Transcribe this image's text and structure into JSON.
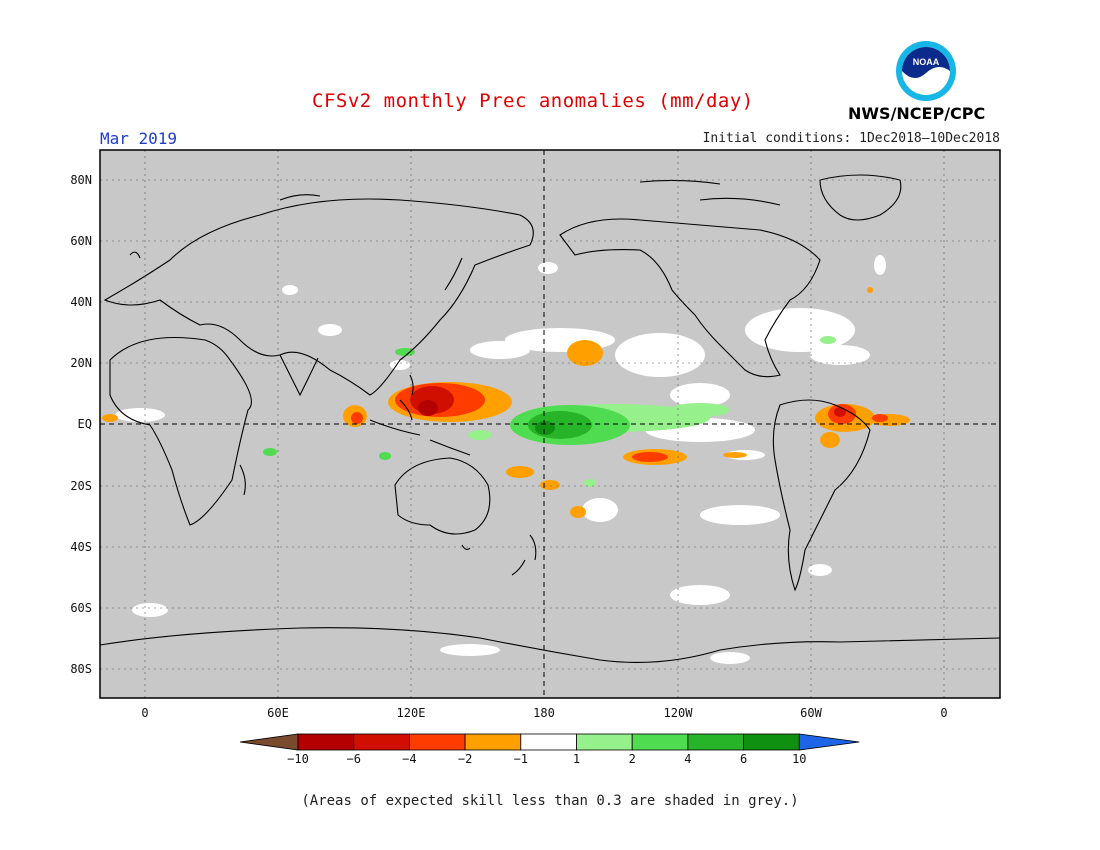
{
  "header": {
    "title": "CFSv2 monthly Prec anomalies (mm/day)",
    "month": "Mar 2019",
    "initial_conditions": "Initial conditions: 1Dec2018–10Dec2018",
    "organization": "NWS/NCEP/CPC",
    "logo_text": "NOAA"
  },
  "colors": {
    "title": "#e00000",
    "month": "#1e3cc8",
    "grey_mask": "#c8c8c8",
    "coastline": "#000000"
  },
  "map": {
    "lat_labels": [
      "80N",
      "60N",
      "40N",
      "20N",
      "EQ",
      "20S",
      "40S",
      "60S",
      "80S"
    ],
    "lon_labels": [
      "0",
      "60E",
      "120E",
      "180",
      "120W",
      "60W",
      "0"
    ]
  },
  "legend": {
    "tick_labels": [
      "−10",
      "−6",
      "−4",
      "−2",
      "−1",
      "1",
      "2",
      "4",
      "6",
      "10"
    ],
    "colors": [
      "#7a4a2e",
      "#b40000",
      "#d10f00",
      "#ff3c00",
      "#ffa000",
      "#ffffff",
      "#96f08c",
      "#50dc50",
      "#28b428",
      "#109010",
      "#1e64e6"
    ]
  },
  "caption": "(Areas of expected skill less than 0.3 are shaded in grey.)"
}
